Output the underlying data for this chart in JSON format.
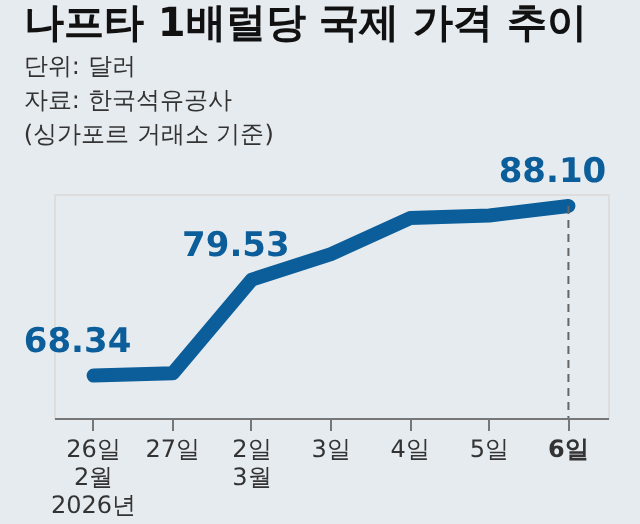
{
  "chart_data": {
    "type": "line",
    "title": "나프타 1배럴당 국제 가격 추이",
    "subtitle": "단위: 달러",
    "annotations": [
      "자료: 한국석유공사",
      "(싱가포르 거래소 기준)"
    ],
    "categories": [
      "26일\n2월\n2026년",
      "27일",
      "2일\n3월",
      "3일",
      "4일",
      "5일",
      "6일"
    ],
    "series": [
      {
        "color": "#0b5e9a",
        "values": [
          68.34,
          68.6,
          79.53,
          82.5,
          86.7,
          87.0,
          88.1
        ],
        "value_labels": [
          "68.34",
          null,
          "79.53",
          null,
          null,
          null,
          "88.10"
        ]
      }
    ],
    "ylim": [
      63.4,
      89.5
    ],
    "grid": false,
    "tick_labels": "x",
    "marker": "none",
    "line_style": "solid",
    "ref_lines": [
      {
        "axis": "x",
        "value": "6일",
        "line_style": "dashed",
        "color": "#666666"
      }
    ]
  }
}
